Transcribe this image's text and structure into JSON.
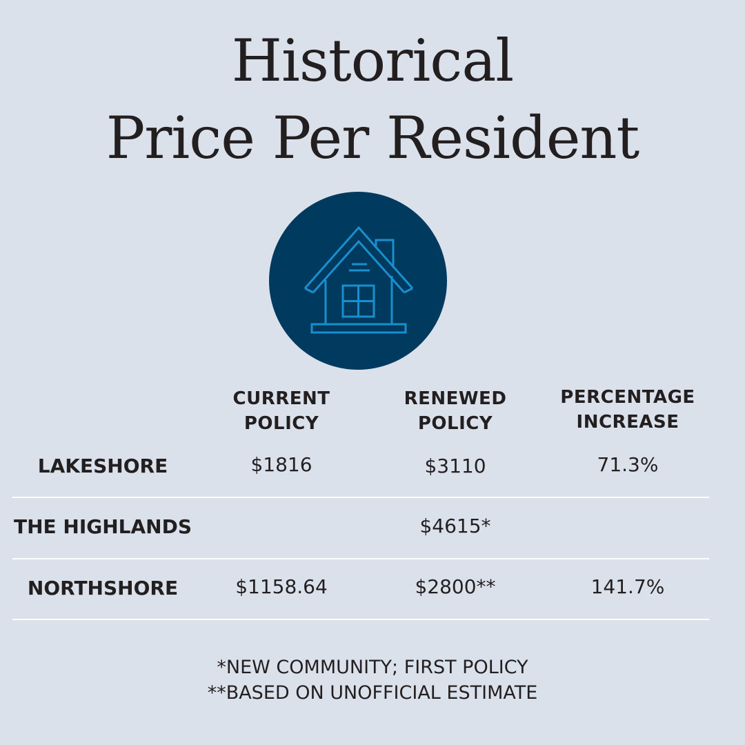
{
  "title": {
    "line1": "Historical",
    "line2": "Price Per Resident"
  },
  "icon": {
    "name": "house-icon",
    "circle_color": "#003a5f",
    "stroke_color": "#1a8fcf"
  },
  "chart_data": {
    "type": "table",
    "columns": [
      "CURRENT\nPOLICY",
      "RENEWED\nPOLICY",
      "PERCENTAGE\nINCREASE"
    ],
    "rows": [
      {
        "label": "LAKESHORE",
        "current": "$1816",
        "renewed": "$3110",
        "increase": "71.3%"
      },
      {
        "label": "THE HIGHLANDS",
        "current": "",
        "renewed": "$4615*",
        "increase": ""
      },
      {
        "label": "NORTHSHORE",
        "current": "$1158.64",
        "renewed": "$2800**",
        "increase": "141.7%"
      }
    ]
  },
  "footnotes": [
    "*NEW COMMUNITY; FIRST POLICY",
    "**BASED ON UNOFFICIAL ESTIMATE"
  ],
  "colors": {
    "background": "#dae1ea",
    "text": "#231f20",
    "divider": "#ffffff"
  }
}
